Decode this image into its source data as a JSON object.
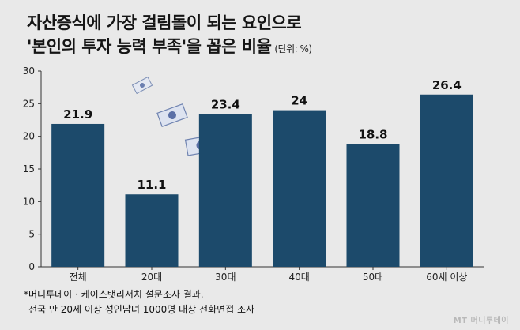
{
  "title": {
    "line1": "자산증식에 가장 걸림돌이 되는 요인으로",
    "line2": "'본인의 투자 능력 부족'을 꼽은 비율",
    "unit": "(단위: %)"
  },
  "notes": {
    "line1": "*머니투데이 · 케이스탯리서치 설문조사 결과.",
    "line2": "전국 만 20세 이상 성인남녀 1000명 대상 전화면접 조사"
  },
  "watermark": "MT 머니투데이",
  "colors": {
    "bar": "#1c4a6b",
    "axis": "#333333",
    "background": "#e9e9e9"
  },
  "chart_data": {
    "type": "bar",
    "categories": [
      "전체",
      "20대",
      "30대",
      "40대",
      "50대",
      "60세 이상"
    ],
    "values": [
      21.9,
      11.1,
      23.4,
      24,
      18.8,
      26.4
    ],
    "data_labels": [
      "21.9",
      "11.1",
      "23.4",
      "24",
      "18.8",
      "26.4"
    ],
    "title": "",
    "xlabel": "",
    "ylabel": "",
    "ylim": [
      0,
      30
    ],
    "yticks": [
      0,
      5,
      10,
      15,
      20,
      25,
      30
    ],
    "grid": false,
    "legend": "none"
  }
}
